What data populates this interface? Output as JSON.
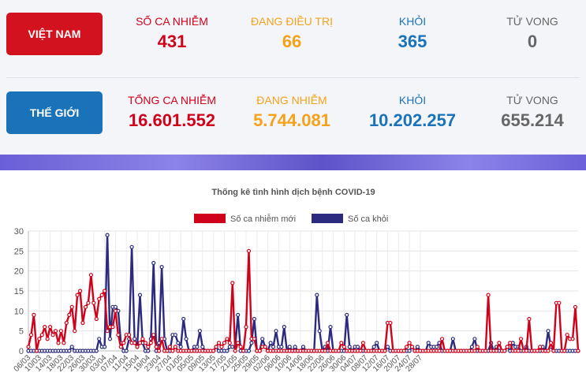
{
  "vietnam": {
    "button_label": "VIỆT NAM",
    "stats": [
      {
        "label": "SỐ CA NHIỄM",
        "value": "431"
      },
      {
        "label": "ĐANG ĐIỀU TRỊ",
        "value": "66"
      },
      {
        "label": "KHỎI",
        "value": "365"
      },
      {
        "label": "TỬ VONG",
        "value": "0"
      }
    ]
  },
  "world": {
    "button_label": "THẾ GIỚI",
    "stats": [
      {
        "label": "TỔNG CA NHIỄM",
        "value": "16.601.552"
      },
      {
        "label": "ĐANG NHIỄM",
        "value": "5.744.081"
      },
      {
        "label": "KHỎI",
        "value": "10.202.257"
      },
      {
        "label": "TỬ VONG",
        "value": "655.214"
      }
    ]
  },
  "colors": {
    "red": "#d0021b",
    "orange": "#f5a21b",
    "blue": "#1a73b8",
    "navy": "#2b2a7e",
    "gray": "#666666"
  },
  "chart_data": {
    "type": "line",
    "title": "Thống kê tình hình dịch bệnh COVID-19",
    "ylim": [
      0,
      30
    ],
    "yticks": [
      0,
      5,
      10,
      15,
      20,
      25,
      30
    ],
    "x_tick_labels": [
      "06/03",
      "10/03",
      "14/03",
      "18/03",
      "22/03",
      "26/03",
      "30/03",
      "03/04",
      "07/04",
      "11/04",
      "15/04",
      "19/04",
      "23/04",
      "27/04",
      "01/05",
      "05/05",
      "09/05",
      "13/05",
      "17/05",
      "21/05",
      "25/05",
      "29/05",
      "02/06",
      "06/06",
      "10/06",
      "14/06",
      "18/06",
      "22/06",
      "26/06",
      "30/06",
      "04/07",
      "08/07",
      "12/07",
      "16/07",
      "20/07",
      "24/07",
      "28/07"
    ],
    "series": [
      {
        "name": "Số ca nhiễm mới",
        "color": "#d0021b",
        "values": [
          1,
          4,
          9,
          0,
          3,
          4,
          6,
          3,
          6,
          4,
          5,
          2,
          5,
          2,
          7,
          9,
          11,
          5,
          14,
          15,
          7,
          11,
          12,
          19,
          12,
          8,
          13,
          14,
          15,
          5,
          6,
          6,
          10,
          4,
          1,
          2,
          4,
          4,
          2,
          2,
          1,
          2,
          3,
          2,
          1,
          2,
          4,
          1,
          0,
          3,
          0,
          0,
          1,
          0,
          1,
          0,
          0,
          0,
          0,
          0,
          0,
          0,
          0,
          0,
          0,
          0,
          0,
          0,
          0,
          1,
          2,
          1,
          2,
          3,
          2,
          17,
          0,
          2,
          1,
          0,
          6,
          25,
          3,
          3,
          0,
          0,
          1,
          1,
          0,
          0,
          0,
          0,
          0,
          0,
          0,
          0,
          0,
          0,
          0,
          0,
          0,
          0,
          0,
          0,
          0,
          0,
          0,
          0,
          0,
          0,
          2,
          0,
          0,
          0,
          0,
          2,
          1,
          0,
          0,
          0,
          0,
          0,
          0,
          2,
          0,
          0,
          0,
          0,
          0,
          0,
          0,
          0,
          7,
          7,
          0,
          0,
          0,
          0,
          0,
          1,
          2,
          1,
          0,
          0,
          0,
          0,
          0,
          0,
          0,
          0,
          0,
          0,
          3,
          0,
          0,
          0,
          0,
          0,
          0,
          0,
          0,
          0,
          0,
          0,
          0,
          1,
          0,
          0,
          0,
          14,
          0,
          0,
          0,
          2,
          0,
          0,
          1,
          2,
          0,
          0,
          0,
          3,
          0,
          0,
          8,
          0,
          0,
          0,
          1,
          0,
          0,
          0,
          2,
          0,
          12,
          12,
          0,
          0,
          4,
          3,
          3,
          11,
          0
        ]
      },
      {
        "name": "Số ca khỏi",
        "color": "#2b2a7e",
        "values": [
          0,
          0,
          0,
          0,
          0,
          0,
          0,
          0,
          0,
          0,
          0,
          0,
          0,
          0,
          0,
          0,
          1,
          0,
          0,
          0,
          0,
          0,
          0,
          0,
          0,
          0,
          3,
          1,
          1,
          29,
          3,
          11,
          11,
          10,
          2,
          0,
          0,
          3,
          26,
          3,
          1,
          14,
          2,
          0,
          0,
          3,
          22,
          0,
          2,
          21,
          3,
          0,
          0,
          4,
          4,
          2,
          1,
          8,
          3,
          0,
          0,
          1,
          1,
          5,
          1,
          0,
          0,
          0,
          0,
          1,
          0,
          0,
          0,
          0,
          1,
          1,
          1,
          9,
          0,
          0,
          0,
          0,
          2,
          8,
          0,
          0,
          3,
          1,
          0,
          2,
          1,
          5,
          1,
          1,
          6,
          0,
          1,
          0,
          1,
          0,
          0,
          1,
          0,
          0,
          0,
          0,
          14,
          5,
          0,
          1,
          0,
          6,
          0,
          0,
          0,
          0,
          0,
          9,
          1,
          0,
          1,
          1,
          0,
          0,
          0,
          0,
          0,
          1,
          2,
          0,
          0,
          0,
          1,
          0,
          0,
          0,
          0,
          0,
          0,
          0,
          0,
          1,
          0,
          1,
          0,
          0,
          0,
          2,
          1,
          1,
          1,
          2,
          0,
          0,
          0,
          0,
          3,
          0,
          0,
          0,
          0,
          0,
          0,
          1,
          3,
          0,
          0,
          0,
          0,
          0,
          2,
          0,
          1,
          0,
          0,
          0,
          1,
          0,
          2,
          1,
          1,
          0,
          0,
          1,
          0,
          0,
          0,
          0,
          0,
          1,
          0,
          5,
          1,
          0,
          0,
          0,
          0,
          0,
          0,
          0,
          0,
          0,
          0
        ]
      }
    ]
  }
}
